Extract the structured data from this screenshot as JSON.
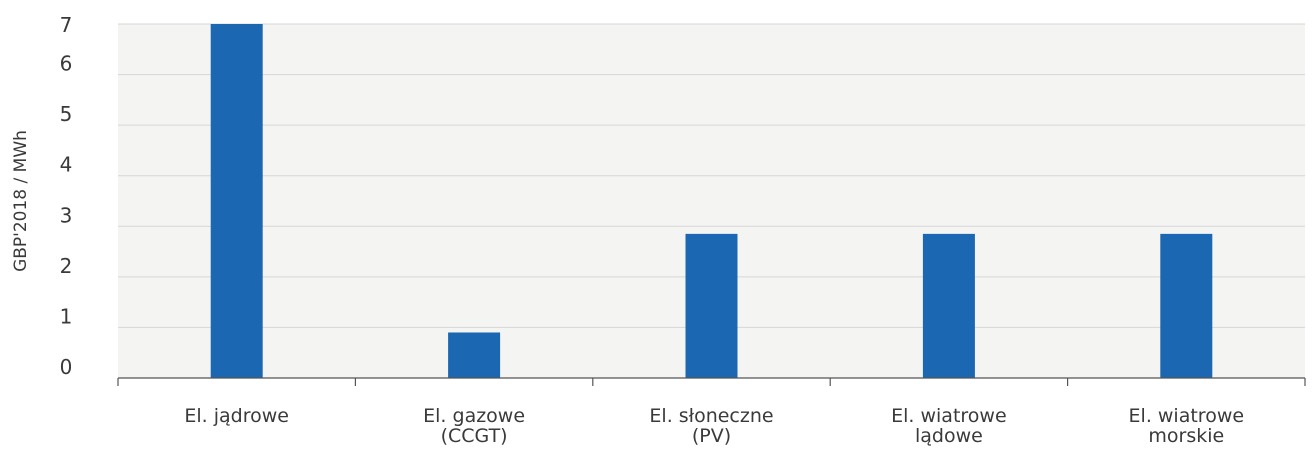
{
  "chart_data": {
    "type": "bar",
    "categories": [
      [
        "El. jądrowe"
      ],
      [
        "El. gazowe",
        "(CCGT)"
      ],
      [
        "El. słoneczne",
        "(PV)"
      ],
      [
        "El. wiatrowe",
        "lądowe"
      ],
      [
        "El. wiatrowe",
        "morskie"
      ]
    ],
    "series": [
      {
        "values": [
          7.0,
          0.9,
          2.85,
          2.85,
          2.85
        ],
        "color": "#1b67b1"
      }
    ],
    "ylabel": "GBP'2018 / MWh",
    "xlabel": "",
    "ylim": [
      0,
      7
    ],
    "yticks": [
      0,
      1,
      2,
      3,
      4,
      5,
      6,
      7
    ],
    "grid": true,
    "plot_background": "#f4f5f3",
    "gridline_color": "#d6d6d6",
    "axis_color": "#555555"
  }
}
